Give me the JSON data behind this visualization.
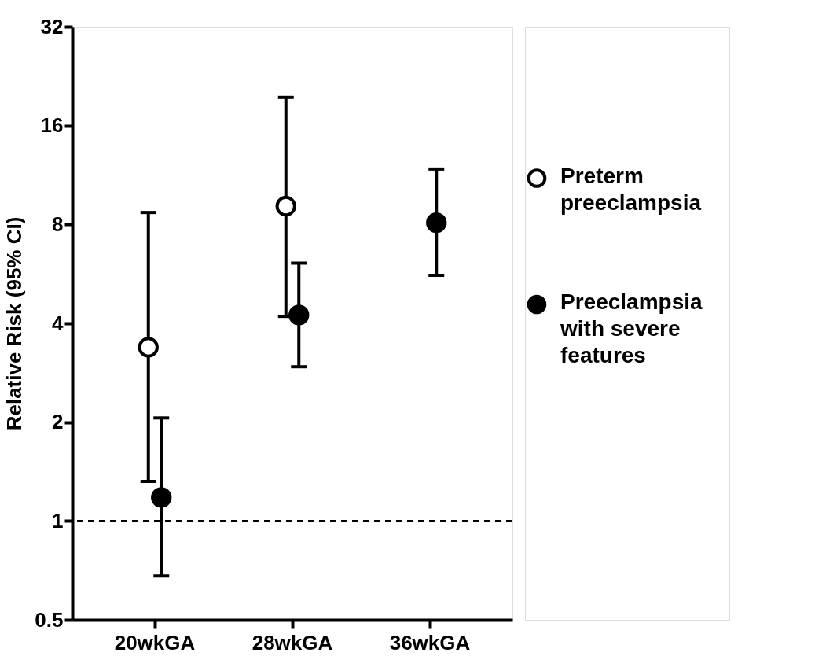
{
  "chart_data": {
    "type": "scatter",
    "ylabel": "Relative Risk (95% CI)",
    "categories": [
      "20wkGA",
      "28wkGA",
      "36wkGA"
    ],
    "series": [
      {
        "name": "Preterm preeclampsia",
        "color": "#000000",
        "values": [
          3.38,
          9.1,
          null
        ],
        "errors": [
          [
            1.32,
            8.7
          ],
          [
            4.2,
            19.5
          ],
          null
        ]
      },
      {
        "name": "Preeclampsia with severe features",
        "color": "#000000",
        "values": [
          1.18,
          4.24,
          8.1
        ],
        "errors": [
          [
            0.68,
            2.06
          ],
          [
            2.95,
            6.1
          ],
          [
            5.6,
            11.8
          ]
        ]
      }
    ],
    "log": true,
    "ylim": [
      0.5,
      32
    ],
    "yticks": [
      0.5,
      1,
      2,
      4,
      8,
      16,
      32
    ],
    "grid": false,
    "legend": "right",
    "marker": "circle",
    "ref_lines": [
      {
        "axis": "y",
        "value": 1,
        "line_style": "dashed"
      }
    ]
  }
}
